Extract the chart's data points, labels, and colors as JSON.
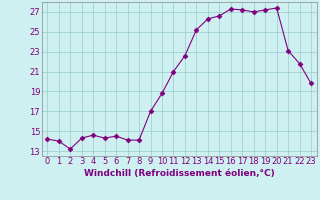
{
  "x": [
    0,
    1,
    2,
    3,
    4,
    5,
    6,
    7,
    8,
    9,
    10,
    11,
    12,
    13,
    14,
    15,
    16,
    17,
    18,
    19,
    20,
    21,
    22,
    23
  ],
  "y": [
    14.2,
    14.0,
    13.2,
    14.3,
    14.6,
    14.3,
    14.5,
    14.1,
    14.1,
    17.0,
    18.8,
    21.0,
    22.6,
    25.2,
    26.3,
    26.6,
    27.3,
    27.2,
    27.0,
    27.2,
    27.4,
    23.1,
    21.8,
    19.8
  ],
  "line_color": "#800080",
  "marker": "D",
  "marker_size": 2.5,
  "bg_color": "#cff0f0",
  "grid_color": "#99cccc",
  "xlabel": "Windchill (Refroidissement éolien,°C)",
  "yticks": [
    13,
    15,
    17,
    19,
    21,
    23,
    25,
    27
  ],
  "xticks": [
    0,
    1,
    2,
    3,
    4,
    5,
    6,
    7,
    8,
    9,
    10,
    11,
    12,
    13,
    14,
    15,
    16,
    17,
    18,
    19,
    20,
    21,
    22,
    23
  ],
  "xlim": [
    -0.5,
    23.5
  ],
  "ylim": [
    12.5,
    28.0
  ],
  "xlabel_fontsize": 6.5,
  "tick_fontsize": 6,
  "tick_color": "#800080",
  "axis_color": "#800080",
  "spine_color": "#888888"
}
